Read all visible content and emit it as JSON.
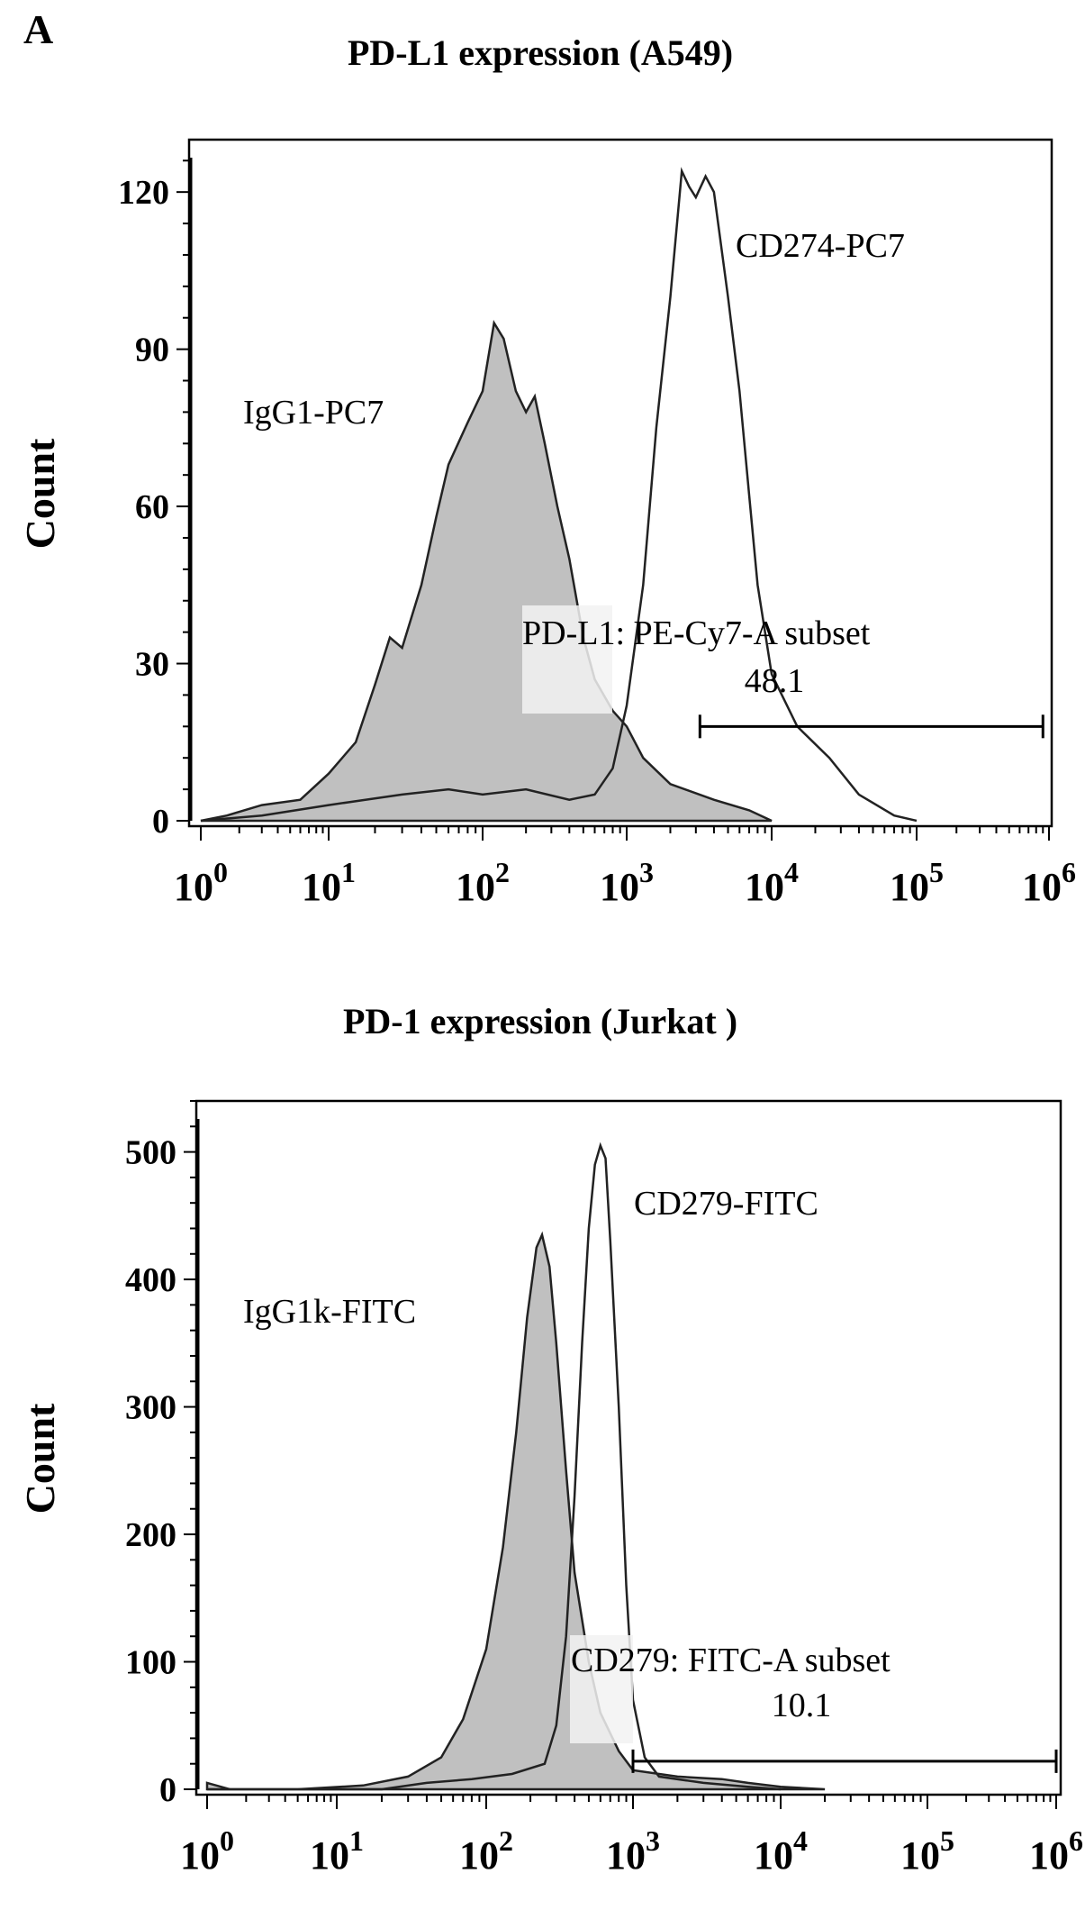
{
  "panel_label": "A",
  "chart_data": [
    {
      "type": "histogram",
      "title": "PD-L1 expression (A549)",
      "xlabel": "",
      "ylabel": "Count",
      "x_scale": "log",
      "x_tick_labels": [
        {
          "base": "10",
          "exp": "0",
          "value": 1
        },
        {
          "base": "10",
          "exp": "1",
          "value": 10
        },
        {
          "base": "10",
          "exp": "2",
          "value": 100
        },
        {
          "base": "10",
          "exp": "3",
          "value": 1000
        },
        {
          "base": "10",
          "exp": "4",
          "value": 10000
        },
        {
          "base": "10",
          "exp": "5",
          "value": 100000
        },
        {
          "base": "10",
          "exp": "6",
          "value": 1000000
        }
      ],
      "y_ticks": [
        "0",
        "30",
        "60",
        "90",
        "120"
      ],
      "ylim": [
        0,
        130
      ],
      "series": [
        {
          "name": "IgG1-PC7",
          "fill": "#c0c0c0",
          "points": [
            [
              1,
              0
            ],
            [
              1.6,
              1
            ],
            [
              3,
              3
            ],
            [
              6,
              4
            ],
            [
              10,
              9
            ],
            [
              15,
              15
            ],
            [
              20,
              26
            ],
            [
              25,
              35
            ],
            [
              30,
              33
            ],
            [
              40,
              45
            ],
            [
              50,
              58
            ],
            [
              60,
              68
            ],
            [
              80,
              76
            ],
            [
              100,
              82
            ],
            [
              120,
              95
            ],
            [
              140,
              92
            ],
            [
              170,
              82
            ],
            [
              200,
              78
            ],
            [
              230,
              81
            ],
            [
              270,
              72
            ],
            [
              330,
              60
            ],
            [
              400,
              50
            ],
            [
              500,
              35
            ],
            [
              600,
              27
            ],
            [
              800,
              21
            ],
            [
              1000,
              18
            ],
            [
              1300,
              12
            ],
            [
              2000,
              7
            ],
            [
              4000,
              4
            ],
            [
              7000,
              2
            ],
            [
              10000,
              0
            ]
          ]
        },
        {
          "name": "CD274-PC7",
          "fill": "none",
          "points": [
            [
              1,
              0
            ],
            [
              3,
              1
            ],
            [
              10,
              3
            ],
            [
              30,
              5
            ],
            [
              60,
              6
            ],
            [
              100,
              5
            ],
            [
              200,
              6
            ],
            [
              400,
              4
            ],
            [
              600,
              5
            ],
            [
              800,
              10
            ],
            [
              1000,
              22
            ],
            [
              1300,
              45
            ],
            [
              1600,
              75
            ],
            [
              2000,
              100
            ],
            [
              2400,
              124
            ],
            [
              2700,
              121
            ],
            [
              3000,
              119
            ],
            [
              3500,
              123
            ],
            [
              4000,
              120
            ],
            [
              5000,
              100
            ],
            [
              6000,
              82
            ],
            [
              7000,
              62
            ],
            [
              8000,
              45
            ],
            [
              10000,
              28
            ],
            [
              15000,
              18
            ],
            [
              25000,
              12
            ],
            [
              40000,
              5
            ],
            [
              70000,
              1
            ],
            [
              100000,
              0
            ]
          ]
        }
      ],
      "gate": {
        "label": "PD-L1: PE-Cy7-A subset",
        "value": "48.1",
        "range": [
          3200,
          900000
        ],
        "y": 18
      }
    },
    {
      "type": "histogram",
      "title": "PD-1 expression (Jurkat )",
      "xlabel": "",
      "ylabel": "Count",
      "x_scale": "log",
      "x_tick_labels": [
        {
          "base": "10",
          "exp": "0",
          "value": 1
        },
        {
          "base": "10",
          "exp": "1",
          "value": 10
        },
        {
          "base": "10",
          "exp": "2",
          "value": 100
        },
        {
          "base": "10",
          "exp": "3",
          "value": 1000
        },
        {
          "base": "10",
          "exp": "4",
          "value": 10000
        },
        {
          "base": "10",
          "exp": "5",
          "value": 100000
        },
        {
          "base": "10",
          "exp": "6",
          "value": 1000000
        }
      ],
      "y_ticks": [
        "0",
        "100",
        "200",
        "300",
        "400",
        "500"
      ],
      "ylim": [
        0,
        540
      ],
      "series": [
        {
          "name": "IgG1k-FITC",
          "fill": "#c0c0c0",
          "points": [
            [
              1,
              5
            ],
            [
              1.5,
              0
            ],
            [
              5,
              0
            ],
            [
              15,
              3
            ],
            [
              30,
              10
            ],
            [
              50,
              25
            ],
            [
              70,
              55
            ],
            [
              100,
              110
            ],
            [
              130,
              190
            ],
            [
              160,
              280
            ],
            [
              190,
              370
            ],
            [
              220,
              425
            ],
            [
              240,
              435
            ],
            [
              270,
              410
            ],
            [
              300,
              350
            ],
            [
              350,
              250
            ],
            [
              400,
              170
            ],
            [
              500,
              100
            ],
            [
              600,
              60
            ],
            [
              800,
              30
            ],
            [
              1000,
              15
            ],
            [
              2000,
              10
            ],
            [
              4000,
              8
            ],
            [
              6000,
              5
            ],
            [
              10000,
              2
            ],
            [
              20000,
              0
            ]
          ]
        },
        {
          "name": "CD279-FITC",
          "fill": "none",
          "points": [
            [
              1,
              0
            ],
            [
              20,
              0
            ],
            [
              40,
              5
            ],
            [
              80,
              8
            ],
            [
              150,
              12
            ],
            [
              250,
              20
            ],
            [
              300,
              50
            ],
            [
              350,
              120
            ],
            [
              400,
              230
            ],
            [
              450,
              350
            ],
            [
              500,
              440
            ],
            [
              550,
              490
            ],
            [
              600,
              505
            ],
            [
              650,
              495
            ],
            [
              700,
              430
            ],
            [
              800,
              300
            ],
            [
              900,
              160
            ],
            [
              1000,
              70
            ],
            [
              1200,
              25
            ],
            [
              1500,
              10
            ],
            [
              3000,
              5
            ],
            [
              6000,
              2
            ],
            [
              10000,
              0
            ]
          ]
        }
      ],
      "gate": {
        "label": "CD279: FITC-A subset",
        "value": "10.1",
        "range": [
          1000,
          1000000
        ],
        "y": 22
      }
    }
  ]
}
